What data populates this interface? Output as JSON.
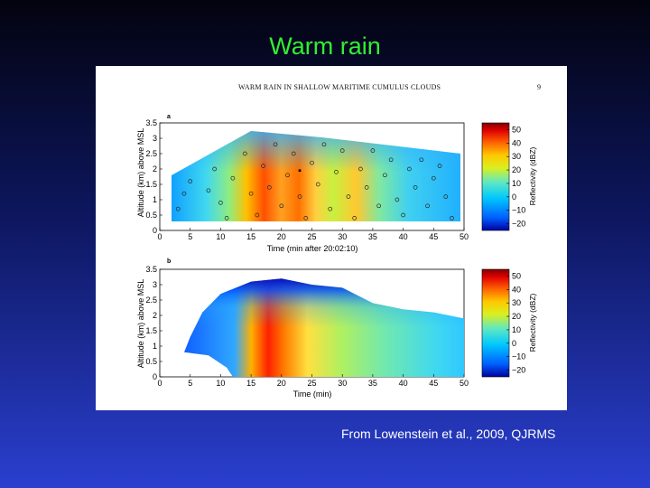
{
  "slide": {
    "title": "Warm rain",
    "caption": "From Lowenstein et al., 2009, QJRMS"
  },
  "figure": {
    "header": "WARM RAIN IN SHALLOW MARITIME CUMULUS CLOUDS",
    "page_number": "9",
    "panel_a": {
      "letter": "a",
      "ylabel": "Altitude (km) above MSL",
      "xlabel": "Time (min after 20:02:10)",
      "colorbar_label": "Reflectivity (dBZ)"
    },
    "panel_b": {
      "letter": "b",
      "ylabel": "Altitude (km) above MSL",
      "xlabel": "Time (min)",
      "colorbar_label": "Reflectivity (dBZ)"
    }
  },
  "chart_data": [
    {
      "type": "heatmap",
      "panel": "a",
      "xlabel": "Time (min after 20:02:10)",
      "ylabel": "Altitude (km) above MSL",
      "xlim": [
        0,
        50
      ],
      "ylim": [
        0,
        3.5
      ],
      "x_ticks": [
        "0",
        "5",
        "10",
        "15",
        "20",
        "25",
        "30",
        "35",
        "40",
        "45",
        "50"
      ],
      "y_ticks": [
        "0",
        "0.5",
        "1",
        "1.5",
        "2",
        "2.5",
        "3",
        "3.5"
      ],
      "colorbar": {
        "label": "Reflectivity (dBZ)",
        "range": [
          -25,
          55
        ],
        "ticks": [
          "50",
          "40",
          "30",
          "20",
          "10",
          "0",
          "−10",
          "−20"
        ]
      },
      "cloud_outline": [
        [
          2,
          1.7
        ],
        [
          15,
          3.2
        ],
        [
          30,
          3.0
        ],
        [
          49.5,
          2.6
        ],
        [
          49.5,
          0.3
        ],
        [
          2,
          0.3
        ]
      ],
      "reflectivity_core_dbz": 50,
      "sample_points": [
        [
          3,
          0.7
        ],
        [
          4,
          1.2
        ],
        [
          5,
          1.6
        ],
        [
          8,
          1.3
        ],
        [
          9,
          2.0
        ],
        [
          10,
          0.9
        ],
        [
          11,
          0.4
        ],
        [
          12,
          1.7
        ],
        [
          14,
          2.5
        ],
        [
          15,
          1.2
        ],
        [
          16,
          0.5
        ],
        [
          17,
          2.1
        ],
        [
          18,
          1.4
        ],
        [
          19,
          2.8
        ],
        [
          20,
          0.8
        ],
        [
          21,
          1.8
        ],
        [
          22,
          2.5
        ],
        [
          23,
          1.1
        ],
        [
          24,
          0.4
        ],
        [
          25,
          2.2
        ],
        [
          26,
          1.5
        ],
        [
          27,
          2.8
        ],
        [
          28,
          0.7
        ],
        [
          29,
          1.9
        ],
        [
          30,
          2.6
        ],
        [
          31,
          1.1
        ],
        [
          32,
          0.4
        ],
        [
          33,
          2.0
        ],
        [
          34,
          1.4
        ],
        [
          35,
          2.6
        ],
        [
          36,
          0.8
        ],
        [
          37,
          1.8
        ],
        [
          38,
          2.3
        ],
        [
          39,
          1.0
        ],
        [
          40,
          0.5
        ],
        [
          41,
          2.0
        ],
        [
          42,
          1.4
        ],
        [
          43,
          2.3
        ],
        [
          44,
          0.8
        ],
        [
          45,
          1.7
        ],
        [
          46,
          2.1
        ],
        [
          47,
          1.1
        ],
        [
          48,
          0.4
        ]
      ]
    },
    {
      "type": "heatmap",
      "panel": "b",
      "xlabel": "Time (min)",
      "ylabel": "Altitude (km) above MSL",
      "xlim": [
        0,
        50
      ],
      "ylim": [
        0,
        3.5
      ],
      "x_ticks": [
        "0",
        "5",
        "10",
        "15",
        "20",
        "25",
        "30",
        "35",
        "40",
        "45",
        "50"
      ],
      "y_ticks": [
        "0",
        "0.5",
        "1",
        "1.5",
        "2",
        "2.5",
        "3",
        "3.5"
      ],
      "colorbar": {
        "label": "Reflectivity (dBZ)",
        "range": [
          -25,
          55
        ],
        "ticks": [
          "50",
          "40",
          "30",
          "20",
          "10",
          "0",
          "−10",
          "−20"
        ]
      },
      "cloud_top_km": [
        [
          4,
          0.8
        ],
        [
          5,
          1.3
        ],
        [
          7,
          2.1
        ],
        [
          10,
          2.7
        ],
        [
          15,
          3.1
        ],
        [
          20,
          3.2
        ],
        [
          25,
          3.0
        ],
        [
          30,
          2.9
        ],
        [
          35,
          2.4
        ],
        [
          40,
          2.2
        ],
        [
          45,
          2.1
        ],
        [
          50,
          1.9
        ]
      ],
      "cloud_base_km": [
        [
          4,
          0.8
        ],
        [
          8,
          0.7
        ],
        [
          11,
          0.3
        ],
        [
          12,
          0.0
        ],
        [
          50,
          0.0
        ]
      ],
      "reflectivity_core_dbz": 50
    }
  ]
}
